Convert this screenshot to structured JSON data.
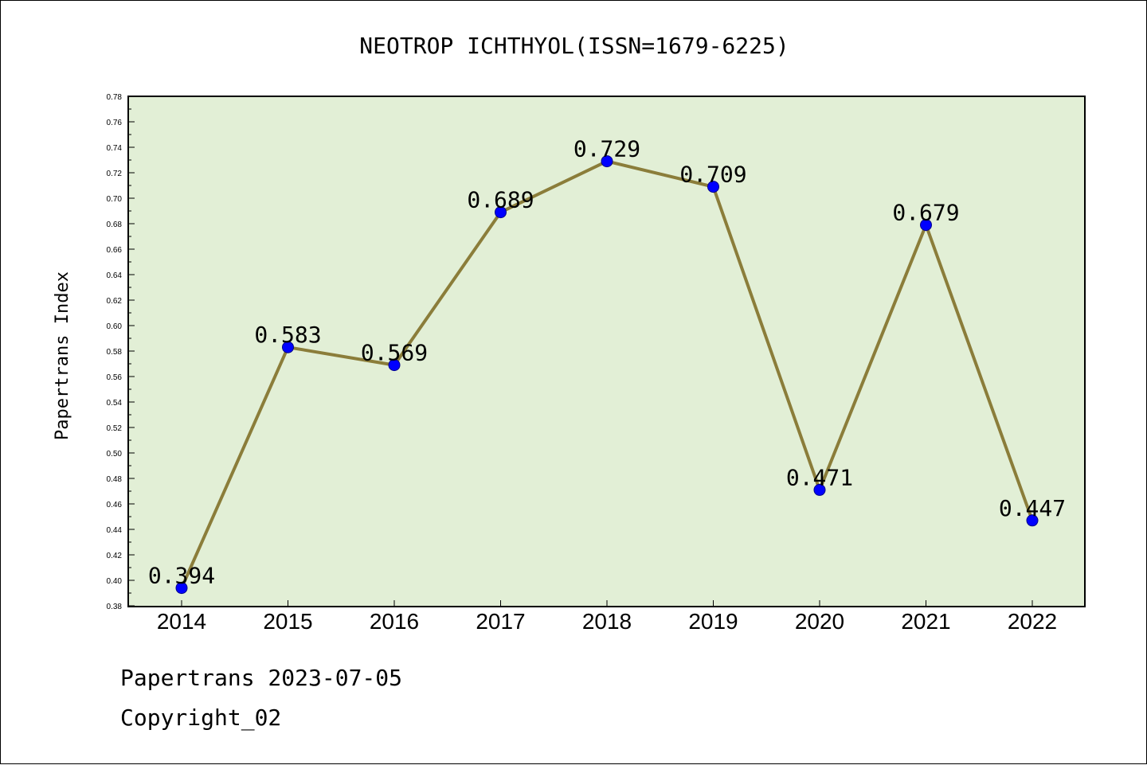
{
  "chart_data": {
    "type": "line",
    "title": "NEOTROP ICHTHYOL(ISSN=1679-6225)",
    "xlabel": "",
    "ylabel": "Papertrans Index",
    "categories": [
      "2014",
      "2015",
      "2016",
      "2017",
      "2018",
      "2019",
      "2020",
      "2021",
      "2022"
    ],
    "series": [
      {
        "values": [
          0.394,
          0.583,
          0.569,
          0.689,
          0.729,
          0.709,
          0.471,
          0.679,
          0.447
        ],
        "data_labels": [
          "0.394",
          "0.583",
          "0.569",
          "0.689",
          "0.729",
          "0.709",
          "0.471",
          "0.679",
          "0.447"
        ]
      }
    ],
    "ylim": [
      0.38,
      0.78
    ],
    "yticks": [
      "0.38",
      "0.40",
      "0.42",
      "0.44",
      "0.46",
      "0.48",
      "0.50",
      "0.52",
      "0.54",
      "0.56",
      "0.58",
      "0.60",
      "0.62",
      "0.64",
      "0.66",
      "0.68",
      "0.70",
      "0.72",
      "0.74",
      "0.76",
      "0.78"
    ],
    "grid": false,
    "legend": "none",
    "colors": {
      "plot_background": "#e2efd6",
      "line": "#8b7d3a",
      "marker_fill": "#0000ff",
      "marker_edge": "#00008b"
    }
  },
  "footer": {
    "line1": "Papertrans 2023-07-05",
    "line2": "Copyright_02"
  }
}
